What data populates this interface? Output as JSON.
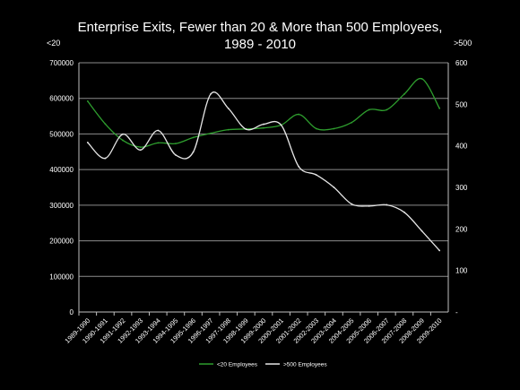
{
  "chart_data": {
    "type": "line",
    "title_line1": "Enterprise Exits, Fewer than 20 & More than 500 Employees,",
    "title_line2": "1989 - 2010",
    "left_axis_label": "<20",
    "right_axis_label": ">500",
    "categories": [
      "1989-1990",
      "1990-1991",
      "1991-1992",
      "1992-1993",
      "1993-1994",
      "1994-1995",
      "1995-1996",
      "1996-1997",
      "1997-1998",
      "1998-1999",
      "1999-2000",
      "2000-2001",
      "2001-2002",
      "2002-2003",
      "2003-2004",
      "2004-2005",
      "2005-2006",
      "2006-2007",
      "2007-2008",
      "2008-2009",
      "2009-2010"
    ],
    "ylim_left": [
      0,
      700000
    ],
    "yticks_left": [
      "0",
      "100000",
      "200000",
      "300000",
      "400000",
      "500000",
      "600000",
      "700000"
    ],
    "ylim_right": [
      0,
      600
    ],
    "yticks_right": [
      "-",
      "100",
      "200",
      "300",
      "400",
      "500",
      "600"
    ],
    "grid": true,
    "legend_placement": "bottom",
    "series": [
      {
        "name": "<20 Employees",
        "axis": "left",
        "color": "#2e9e2e",
        "values": [
          592000,
          528000,
          482000,
          463000,
          475000,
          473000,
          490000,
          502000,
          512000,
          514000,
          517000,
          525000,
          555000,
          515000,
          515000,
          532000,
          568000,
          568000,
          612000,
          655000,
          572000
        ]
      },
      {
        "name": ">500 Employees",
        "axis": "right",
        "color": "#e6e6e6",
        "values": [
          408,
          370,
          428,
          390,
          437,
          378,
          385,
          525,
          490,
          440,
          452,
          450,
          350,
          330,
          300,
          260,
          255,
          258,
          240,
          195,
          148
        ]
      }
    ]
  }
}
